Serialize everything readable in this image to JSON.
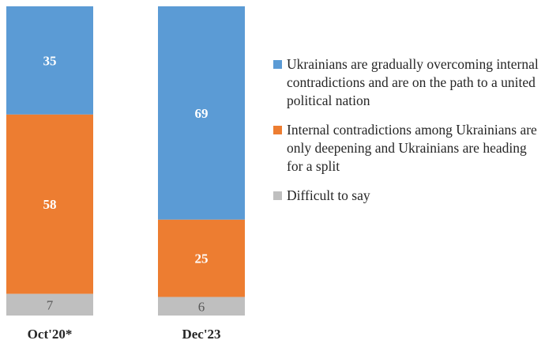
{
  "chart_data": {
    "type": "bar",
    "stacked": true,
    "percent": true,
    "categories": [
      "Oct'20*",
      "Dec'23"
    ],
    "series": [
      {
        "name": "Ukrainians are gradually overcoming internal contradictions and are on the path to a united political nation",
        "color": "#5b9bd5",
        "label_color": "#ffffff",
        "values": [
          35,
          69
        ]
      },
      {
        "name": "Internal contradictions among Ukrainians are only deepening and Ukrainians are heading for a split",
        "color": "#ed7d31",
        "label_color": "#ffffff",
        "values": [
          58,
          25
        ]
      },
      {
        "name": "Difficult to say",
        "color": "#bfbfbf",
        "label_color": "#595959",
        "values": [
          7,
          6
        ]
      }
    ],
    "ylim": [
      0,
      100
    ],
    "grid": false,
    "legend_position": "right"
  }
}
